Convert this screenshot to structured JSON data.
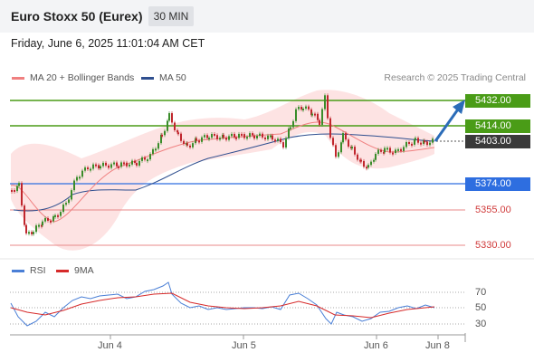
{
  "header": {
    "title": "Euro Stoxx 50 (Eurex)",
    "timeframe": "30 MIN"
  },
  "datetime": "Friday, June 6, 2025 11:01:04 AM CET",
  "legend": {
    "ma20": "MA 20 + Bollinger Bands",
    "ma50": "MA 50",
    "credit": "Research © 2025 Trading Central"
  },
  "levels": {
    "r2": "5432.00",
    "r1": "5414.00",
    "last": "5403.00",
    "pivot": "5374.00",
    "s1": "5355.00",
    "s2": "5330.00"
  },
  "rsi": {
    "legend_rsi": "RSI",
    "legend_ma": "9MA",
    "ticks": [
      "70",
      "50",
      "30"
    ]
  },
  "xaxis": [
    "Jun 4",
    "Jun 5",
    "Jun 6",
    "Jun 8"
  ],
  "colors": {
    "resistance": "#4a9c17",
    "pivot": "#2e6ee0",
    "support": "#e88a8a",
    "last": "#3a3a3a",
    "ma20": "#f08080",
    "ma50": "#2f4f8f",
    "bollinger_fill": "#fde3e3",
    "candle_up": "#3a8c2a",
    "candle_down": "#c0262d",
    "arrow": "#2b6cb8"
  }
}
